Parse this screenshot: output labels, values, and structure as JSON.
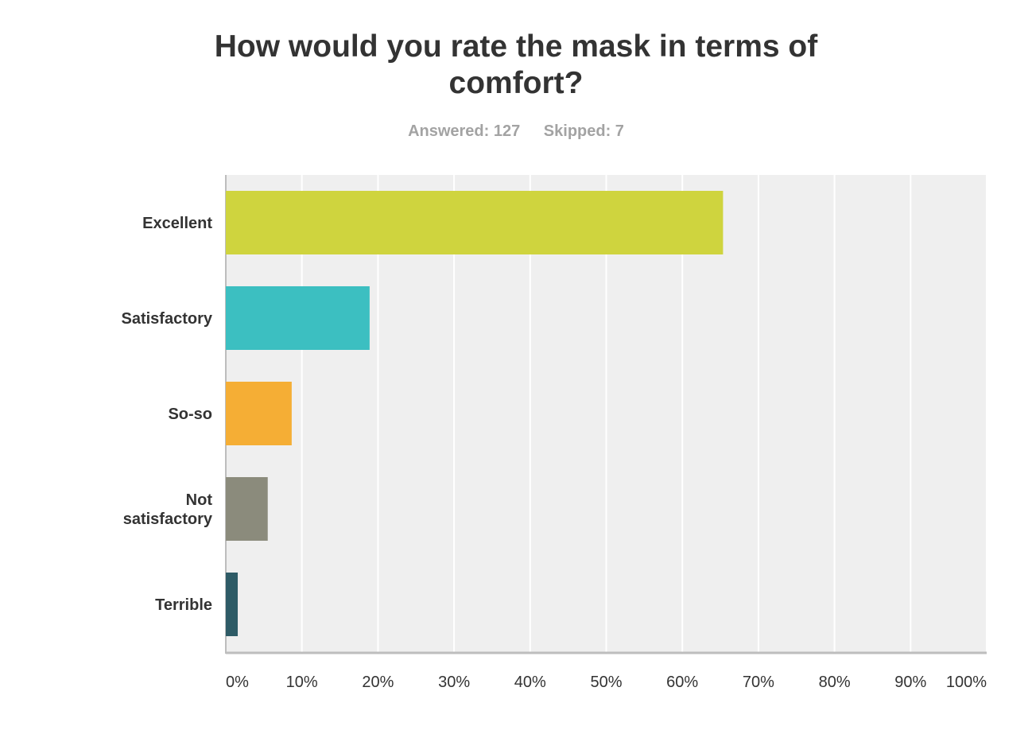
{
  "header": {
    "title_line1": "How would you rate the mask in terms of",
    "title_line2": "comfort?",
    "answered": "Answered: 127",
    "skipped": "Skipped: 7"
  },
  "chart_data": {
    "type": "bar",
    "orientation": "horizontal",
    "title": "How would you rate the mask in terms of comfort?",
    "categories": [
      {
        "label_lines": [
          "Excellent"
        ],
        "value": 65.35,
        "color": "#cfd43e"
      },
      {
        "label_lines": [
          "Satisfactory"
        ],
        "value": 18.9,
        "color": "#3cbfc1"
      },
      {
        "label_lines": [
          "So-so"
        ],
        "value": 8.66,
        "color": "#f5ae35"
      },
      {
        "label_lines": [
          "Not",
          "satisfactory"
        ],
        "value": 5.51,
        "color": "#8b8b7c"
      },
      {
        "label_lines": [
          "Terrible"
        ],
        "value": 1.57,
        "color": "#2e5b66"
      }
    ],
    "xlim": [
      0,
      100
    ],
    "ticks": [
      "0%",
      "10%",
      "20%",
      "30%",
      "40%",
      "50%",
      "60%",
      "70%",
      "80%",
      "90%",
      "100%"
    ],
    "grid": true,
    "plot_background": "#efefef",
    "gridline_color": "#ffffff"
  }
}
